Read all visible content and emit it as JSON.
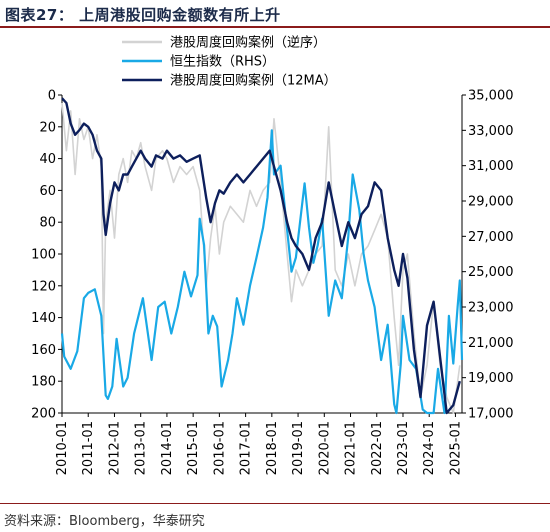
{
  "title": "图表27：  上周港股回购金额数有所上升",
  "source": "资料来源：Bloomberg，华泰研究",
  "colors": {
    "buyback_weekly": "#d3d3d3",
    "hsi": "#19a9e6",
    "buyback_12ma": "#0d1f5c",
    "title_rule": "#8b1b1b"
  },
  "chart_data": {
    "type": "line",
    "title": "上周港股回购金额数有所上升",
    "x_tick_labels": [
      "2010-01",
      "2011-01",
      "2012-01",
      "2013-01",
      "2014-01",
      "2015-01",
      "2016-01",
      "2017-01",
      "2018-01",
      "2019-01",
      "2020-01",
      "2021-01",
      "2022-01",
      "2023-01",
      "2024-01",
      "2025-01"
    ],
    "x_range": [
      "2010-01",
      "2025-04"
    ],
    "y_left": {
      "range": [
        0,
        200
      ],
      "inverted": true,
      "ticks": [
        0,
        20,
        40,
        60,
        80,
        100,
        120,
        140,
        160,
        180,
        200
      ]
    },
    "y_right": {
      "range": [
        17000,
        35000
      ],
      "label": "RHS",
      "ticks": [
        17000,
        19000,
        21000,
        23000,
        25000,
        27000,
        29000,
        31000,
        33000,
        35000
      ],
      "tick_labels": [
        "17,000",
        "19,000",
        "21,000",
        "23,000",
        "25,000",
        "27,000",
        "29,000",
        "31,000",
        "33,000",
        "35,000"
      ]
    },
    "legend": {
      "placement": "top-left inside",
      "items": [
        "港股周度回购案例（逆序）",
        "恒生指数（RHS）",
        "港股周度回购案例（12MA）"
      ]
    },
    "series": [
      {
        "name": "港股周度回购案例（逆序）",
        "axis": "left",
        "style": "thin grey weekly",
        "points": [
          [
            "2010-01",
            5
          ],
          [
            "2010-03",
            35
          ],
          [
            "2010-05",
            10
          ],
          [
            "2010-07",
            50
          ],
          [
            "2010-09",
            15
          ],
          [
            "2010-11",
            28
          ],
          [
            "2011-01",
            20
          ],
          [
            "2011-03",
            40
          ],
          [
            "2011-05",
            25
          ],
          [
            "2011-07",
            45
          ],
          [
            "2011-08",
            150
          ],
          [
            "2011-09",
            80
          ],
          [
            "2011-11",
            60
          ],
          [
            "2012-01",
            90
          ],
          [
            "2012-03",
            50
          ],
          [
            "2012-05",
            40
          ],
          [
            "2012-07",
            55
          ],
          [
            "2012-09",
            35
          ],
          [
            "2012-11",
            40
          ],
          [
            "2013-01",
            30
          ],
          [
            "2013-03",
            45
          ],
          [
            "2013-06",
            60
          ],
          [
            "2013-08",
            40
          ],
          [
            "2013-11",
            35
          ],
          [
            "2014-01",
            40
          ],
          [
            "2014-04",
            55
          ],
          [
            "2014-07",
            45
          ],
          [
            "2014-10",
            50
          ],
          [
            "2015-01",
            45
          ],
          [
            "2015-04",
            60
          ],
          [
            "2015-07",
            120
          ],
          [
            "2015-09",
            90
          ],
          [
            "2015-11",
            70
          ],
          [
            "2016-01",
            100
          ],
          [
            "2016-03",
            80
          ],
          [
            "2016-06",
            70
          ],
          [
            "2016-09",
            75
          ],
          [
            "2016-12",
            80
          ],
          [
            "2017-03",
            60
          ],
          [
            "2017-06",
            70
          ],
          [
            "2017-09",
            60
          ],
          [
            "2017-12",
            55
          ],
          [
            "2018-02",
            15
          ],
          [
            "2018-05",
            55
          ],
          [
            "2018-08",
            100
          ],
          [
            "2018-10",
            130
          ],
          [
            "2018-12",
            110
          ],
          [
            "2019-03",
            120
          ],
          [
            "2019-06",
            110
          ],
          [
            "2019-09",
            100
          ],
          [
            "2019-12",
            95
          ],
          [
            "2020-03",
            20
          ],
          [
            "2020-06",
            110
          ],
          [
            "2020-09",
            120
          ],
          [
            "2020-12",
            100
          ],
          [
            "2021-03",
            120
          ],
          [
            "2021-06",
            100
          ],
          [
            "2021-09",
            95
          ],
          [
            "2021-12",
            85
          ],
          [
            "2022-03",
            75
          ],
          [
            "2022-06",
            90
          ],
          [
            "2022-09",
            140
          ],
          [
            "2022-11",
            170
          ],
          [
            "2023-01",
            110
          ],
          [
            "2023-03",
            100
          ],
          [
            "2023-06",
            150
          ],
          [
            "2023-09",
            190
          ],
          [
            "2023-12",
            170
          ],
          [
            "2024-03",
            130
          ],
          [
            "2024-06",
            170
          ],
          [
            "2024-09",
            190
          ],
          [
            "2024-12",
            200
          ],
          [
            "2025-03",
            170
          ]
        ]
      },
      {
        "name": "恒生指数（RHS）",
        "axis": "right",
        "points": [
          [
            "2010-01",
            21500
          ],
          [
            "2010-02",
            20200
          ],
          [
            "2010-05",
            19500
          ],
          [
            "2010-08",
            20500
          ],
          [
            "2010-11",
            23500
          ],
          [
            "2011-01",
            23800
          ],
          [
            "2011-04",
            24000
          ],
          [
            "2011-07",
            22500
          ],
          [
            "2011-09",
            18000
          ],
          [
            "2011-10",
            17800
          ],
          [
            "2011-12",
            18500
          ],
          [
            "2012-02",
            21200
          ],
          [
            "2012-05",
            18500
          ],
          [
            "2012-07",
            19000
          ],
          [
            "2012-10",
            21500
          ],
          [
            "2012-12",
            22500
          ],
          [
            "2013-02",
            23500
          ],
          [
            "2013-06",
            20000
          ],
          [
            "2013-09",
            23000
          ],
          [
            "2013-12",
            23300
          ],
          [
            "2014-03",
            21500
          ],
          [
            "2014-06",
            23000
          ],
          [
            "2014-09",
            25000
          ],
          [
            "2014-12",
            23600
          ],
          [
            "2015-03",
            24800
          ],
          [
            "2015-04",
            28000
          ],
          [
            "2015-06",
            26500
          ],
          [
            "2015-08",
            21500
          ],
          [
            "2015-10",
            22500
          ],
          [
            "2015-12",
            21900
          ],
          [
            "2016-02",
            18500
          ],
          [
            "2016-05",
            20000
          ],
          [
            "2016-07",
            21500
          ],
          [
            "2016-09",
            23500
          ],
          [
            "2016-12",
            22000
          ],
          [
            "2017-03",
            24200
          ],
          [
            "2017-06",
            25800
          ],
          [
            "2017-09",
            27500
          ],
          [
            "2017-11",
            29200
          ],
          [
            "2018-01",
            33000
          ],
          [
            "2018-02",
            30500
          ],
          [
            "2018-05",
            31000
          ],
          [
            "2018-07",
            28500
          ],
          [
            "2018-10",
            25000
          ],
          [
            "2018-12",
            25800
          ],
          [
            "2019-04",
            30000
          ],
          [
            "2019-06",
            27500
          ],
          [
            "2019-08",
            25500
          ],
          [
            "2019-10",
            26500
          ],
          [
            "2019-12",
            28000
          ],
          [
            "2020-03",
            22500
          ],
          [
            "2020-06",
            24500
          ],
          [
            "2020-09",
            23500
          ],
          [
            "2020-12",
            27000
          ],
          [
            "2021-02",
            30500
          ],
          [
            "2021-05",
            28500
          ],
          [
            "2021-07",
            26000
          ],
          [
            "2021-09",
            24500
          ],
          [
            "2021-12",
            23000
          ],
          [
            "2022-03",
            20000
          ],
          [
            "2022-06",
            22000
          ],
          [
            "2022-09",
            17500
          ],
          [
            "2022-10",
            15000
          ],
          [
            "2022-12",
            19800
          ],
          [
            "2023-01",
            22500
          ],
          [
            "2023-04",
            20000
          ],
          [
            "2023-07",
            19500
          ],
          [
            "2023-10",
            17200
          ],
          [
            "2023-12",
            16800
          ],
          [
            "2024-01",
            15000
          ],
          [
            "2024-03",
            16800
          ],
          [
            "2024-05",
            19500
          ],
          [
            "2024-08",
            17000
          ],
          [
            "2024-10",
            22500
          ],
          [
            "2024-12",
            19800
          ],
          [
            "2025-02",
            23000
          ],
          [
            "2025-03",
            24500
          ],
          [
            "2025-04",
            20000
          ]
        ]
      },
      {
        "name": "港股周度回购案例（12MA）",
        "axis": "left",
        "points": [
          [
            "2010-01",
            2
          ],
          [
            "2010-03",
            5
          ],
          [
            "2010-05",
            18
          ],
          [
            "2010-07",
            25
          ],
          [
            "2010-09",
            22
          ],
          [
            "2010-11",
            18
          ],
          [
            "2011-01",
            20
          ],
          [
            "2011-03",
            25
          ],
          [
            "2011-05",
            35
          ],
          [
            "2011-07",
            40
          ],
          [
            "2011-08",
            75
          ],
          [
            "2011-09",
            88
          ],
          [
            "2011-11",
            68
          ],
          [
            "2012-01",
            55
          ],
          [
            "2012-03",
            60
          ],
          [
            "2012-05",
            50
          ],
          [
            "2012-07",
            50
          ],
          [
            "2012-09",
            45
          ],
          [
            "2012-11",
            40
          ],
          [
            "2013-01",
            35
          ],
          [
            "2013-03",
            40
          ],
          [
            "2013-06",
            45
          ],
          [
            "2013-08",
            38
          ],
          [
            "2013-11",
            40
          ],
          [
            "2014-01",
            35
          ],
          [
            "2014-04",
            40
          ],
          [
            "2014-07",
            38
          ],
          [
            "2014-10",
            42
          ],
          [
            "2015-01",
            40
          ],
          [
            "2015-04",
            38
          ],
          [
            "2015-07",
            65
          ],
          [
            "2015-09",
            80
          ],
          [
            "2015-11",
            68
          ],
          [
            "2016-01",
            60
          ],
          [
            "2016-03",
            62
          ],
          [
            "2016-06",
            55
          ],
          [
            "2016-09",
            50
          ],
          [
            "2016-12",
            55
          ],
          [
            "2017-03",
            50
          ],
          [
            "2017-06",
            45
          ],
          [
            "2017-09",
            40
          ],
          [
            "2017-12",
            35
          ],
          [
            "2018-02",
            45
          ],
          [
            "2018-05",
            60
          ],
          [
            "2018-08",
            80
          ],
          [
            "2018-10",
            90
          ],
          [
            "2018-12",
            95
          ],
          [
            "2019-03",
            100
          ],
          [
            "2019-06",
            110
          ],
          [
            "2019-09",
            90
          ],
          [
            "2019-12",
            80
          ],
          [
            "2020-03",
            55
          ],
          [
            "2020-06",
            75
          ],
          [
            "2020-09",
            95
          ],
          [
            "2020-12",
            80
          ],
          [
            "2021-03",
            90
          ],
          [
            "2021-06",
            75
          ],
          [
            "2021-09",
            70
          ],
          [
            "2021-12",
            55
          ],
          [
            "2022-03",
            60
          ],
          [
            "2022-06",
            90
          ],
          [
            "2022-09",
            110
          ],
          [
            "2022-11",
            120
          ],
          [
            "2023-01",
            100
          ],
          [
            "2023-03",
            115
          ],
          [
            "2023-06",
            160
          ],
          [
            "2023-09",
            190
          ],
          [
            "2023-12",
            145
          ],
          [
            "2024-03",
            130
          ],
          [
            "2024-06",
            165
          ],
          [
            "2024-09",
            200
          ],
          [
            "2024-12",
            195
          ],
          [
            "2025-03",
            180
          ]
        ]
      }
    ]
  }
}
